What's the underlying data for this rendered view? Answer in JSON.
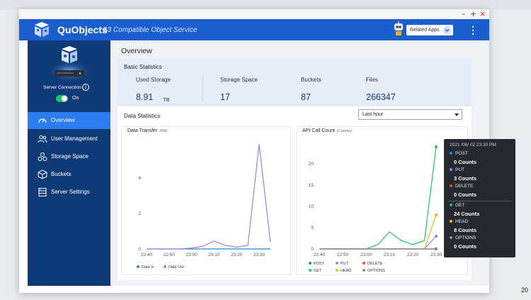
{
  "window": {
    "controls": [
      "–",
      "+",
      "×"
    ]
  },
  "header": {
    "brand": "QuObjects",
    "subtitle": "S3 Compatible Object Service",
    "related_apps": "Related Apps"
  },
  "sidebar": {
    "server_connection": "Server Connection",
    "toggle_label": "On",
    "toggle_on": true,
    "items": [
      {
        "label": "Overview",
        "icon": "gauge-icon",
        "active": true
      },
      {
        "label": "User Management",
        "icon": "users-icon",
        "active": false
      },
      {
        "label": "Storage Space",
        "icon": "storage-icon",
        "active": false
      },
      {
        "label": "Buckets",
        "icon": "cube-icon",
        "active": false
      },
      {
        "label": "Server Settings",
        "icon": "server-settings-icon",
        "active": false
      }
    ]
  },
  "main": {
    "title": "Overview",
    "basic_statistics": {
      "title": "Basic Statistics",
      "used_storage": {
        "label": "Used Storage",
        "value": "8.91",
        "unit": "TB"
      },
      "storage_space": {
        "label": "Storage Space",
        "value": "17"
      },
      "buckets": {
        "label": "Buckets",
        "value": "87"
      },
      "files": {
        "label": "Files",
        "value": "266347"
      }
    },
    "data_statistics": {
      "title": "Data Statistics",
      "range": "Last hour"
    }
  },
  "chart_data": [
    {
      "type": "line",
      "title": "Data Transfer",
      "unit": "(KB)",
      "x": [
        "22:40",
        "22:45",
        "22:50",
        "22:55",
        "23:00",
        "23:05",
        "23:10",
        "23:15",
        "23:20",
        "23:25",
        "23:30",
        "23:35"
      ],
      "yticks": [
        0,
        2,
        4
      ],
      "ylim": [
        0,
        6
      ],
      "grid": false,
      "series": [
        {
          "name": "Data In",
          "color": "#1e88e5",
          "values": [
            0,
            0,
            0,
            0,
            0,
            0,
            0,
            0,
            0,
            0,
            0,
            0
          ]
        },
        {
          "name": "Data Out",
          "color": "#9b7ff0",
          "values": [
            0,
            0,
            0,
            0,
            0.05,
            0.15,
            0.45,
            0.2,
            0.1,
            0.2,
            5.9,
            0.4
          ]
        }
      ],
      "legend": "bottom"
    },
    {
      "type": "line",
      "title": "API Call Count",
      "unit": "(Counts)",
      "x": [
        "22:40",
        "22:45",
        "22:50",
        "22:55",
        "23:00",
        "23:05",
        "23:10",
        "23:15",
        "23:20",
        "23:25",
        "23:30"
      ],
      "yticks": [
        0,
        5,
        10,
        15,
        20
      ],
      "ylim": [
        0,
        25
      ],
      "grid": false,
      "series": [
        {
          "name": "POST",
          "color": "#1e88e5",
          "values": [
            0,
            0,
            0,
            0,
            0,
            0,
            0,
            0,
            0,
            0,
            0
          ]
        },
        {
          "name": "PUT",
          "color": "#9b7ff0",
          "values": [
            0,
            0,
            0,
            0,
            0,
            0,
            0,
            0,
            0,
            0,
            3
          ]
        },
        {
          "name": "DELETE",
          "color": "#e8541c",
          "values": [
            0,
            0,
            0,
            0,
            0,
            0,
            0,
            0,
            0,
            0,
            0
          ]
        },
        {
          "name": "GET",
          "color": "#20c66b",
          "values": [
            0,
            0,
            0,
            0,
            0,
            1,
            4,
            2,
            1,
            2,
            24
          ]
        },
        {
          "name": "HEAD",
          "color": "#f5b719",
          "values": [
            0,
            0,
            0,
            0,
            0,
            0,
            0,
            0,
            0,
            0,
            8
          ]
        },
        {
          "name": "OPTIONS",
          "color": "#8a8f96",
          "values": [
            0,
            0,
            0,
            0,
            0,
            0,
            0,
            0,
            0,
            0,
            0
          ]
        }
      ],
      "legend": "bottom"
    }
  ],
  "tooltip": {
    "date": "2021 /06/ 02 23:30 PM",
    "rows": [
      {
        "name": "POST",
        "count": "0 Counts",
        "color": "#1e88e5"
      },
      {
        "name": "PUT",
        "count": "3 Counts",
        "color": "#9b7ff0"
      },
      {
        "name": "DELETE",
        "count": "0 Counts",
        "color": "#e8541c"
      },
      {
        "name": "GET",
        "count": "24 Counts",
        "color": "#20c66b"
      },
      {
        "name": "HEAD",
        "count": "8 Counts",
        "color": "#f5b719"
      },
      {
        "name": "OPTIONS",
        "count": "0 Counts",
        "color": "#8a8f96"
      }
    ]
  },
  "page_number": "20"
}
